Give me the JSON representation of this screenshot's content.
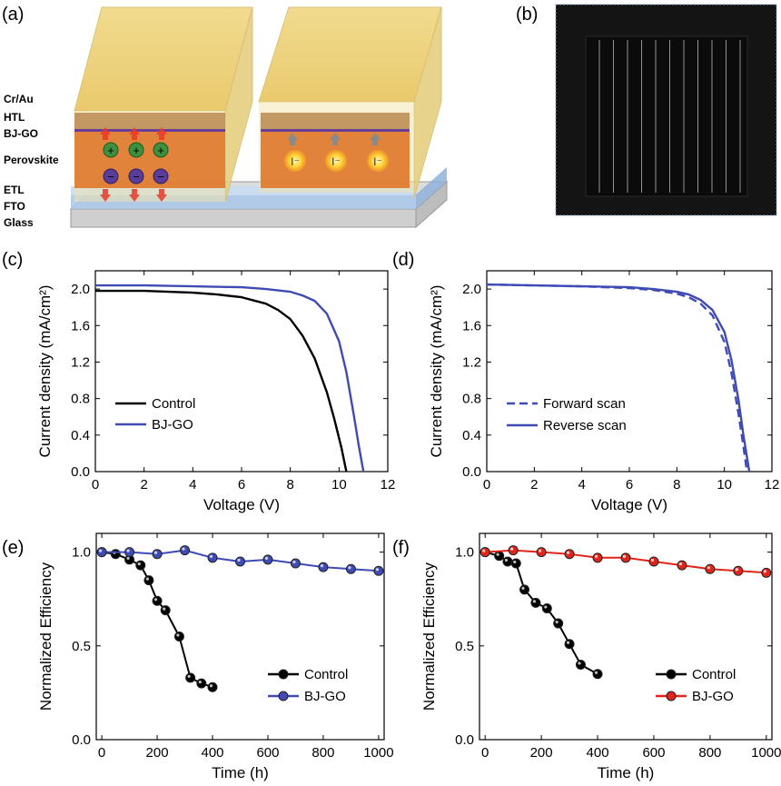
{
  "panel_labels": [
    "(a)",
    "(b)",
    "(c)",
    "(d)",
    "(e)",
    "(f)"
  ],
  "schematic": {
    "layers": [
      {
        "label": "Cr/Au",
        "color": "#d9b44a"
      },
      {
        "label": "HTL",
        "color": "#b8860b"
      },
      {
        "label": "BJ-GO",
        "color": "#6a3d9a"
      },
      {
        "label": "Perovskite",
        "color": "#d2691e"
      },
      {
        "label": "ETL",
        "color": "#8fb3e0"
      },
      {
        "label": "FTO",
        "color": "#2c3e8c"
      },
      {
        "label": "Glass",
        "color": "#222222"
      }
    ],
    "cell1_symbols": [
      "+",
      "+",
      "+",
      "−",
      "−",
      "−"
    ],
    "cell2_ion": "I⁻"
  },
  "chart_data": [
    {
      "id": "c",
      "type": "line",
      "xlabel": "Voltage (V)",
      "ylabel": "Current density (mA/cm²)",
      "xlim": [
        0,
        12
      ],
      "ylim": [
        0,
        2.2
      ],
      "xticks": [
        0,
        2,
        4,
        6,
        8,
        10,
        12
      ],
      "yticks": [
        "0.0",
        "0.4",
        "0.8",
        "1.2",
        "1.6",
        "2.0"
      ],
      "legend_position": "lower-left",
      "series": [
        {
          "name": "Control",
          "color": "#000000",
          "dash": "none",
          "x": [
            0,
            2,
            4,
            5,
            6,
            7,
            7.5,
            8,
            8.5,
            9,
            9.5,
            9.8,
            10.1,
            10.3
          ],
          "y": [
            1.98,
            1.98,
            1.96,
            1.94,
            1.91,
            1.84,
            1.77,
            1.67,
            1.49,
            1.24,
            0.87,
            0.58,
            0.26,
            0.0
          ]
        },
        {
          "name": "BJ-GO",
          "color": "#3f4bb5",
          "dash": "none",
          "x": [
            0,
            2,
            4,
            6,
            7,
            8,
            8.5,
            9,
            9.5,
            10,
            10.3,
            10.6,
            10.8,
            11.0
          ],
          "y": [
            2.04,
            2.04,
            2.03,
            2.02,
            2.0,
            1.97,
            1.93,
            1.87,
            1.73,
            1.43,
            1.09,
            0.63,
            0.3,
            0.0
          ]
        }
      ]
    },
    {
      "id": "d",
      "type": "line",
      "xlabel": "Voltage (V)",
      "ylabel": "Current density (mA/cm²)",
      "xlim": [
        0,
        12
      ],
      "ylim": [
        0,
        2.2
      ],
      "xticks": [
        0,
        2,
        4,
        6,
        8,
        10,
        12
      ],
      "yticks": [
        "0.0",
        "0.4",
        "0.8",
        "1.2",
        "1.6",
        "2.0"
      ],
      "legend_position": "lower-left",
      "series": [
        {
          "name": "Forward scan",
          "color": "#3f4bb5",
          "dash": "9,5",
          "x": [
            0,
            2,
            4,
            6,
            7,
            8,
            8.5,
            9,
            9.5,
            10,
            10.3,
            10.6,
            10.8,
            10.95
          ],
          "y": [
            2.05,
            2.04,
            2.03,
            2.01,
            1.99,
            1.95,
            1.91,
            1.84,
            1.71,
            1.42,
            1.08,
            0.62,
            0.28,
            0.0
          ]
        },
        {
          "name": "Reverse scan",
          "color": "#3f4bb5",
          "dash": "none",
          "x": [
            0,
            2,
            4,
            6,
            7,
            8,
            8.5,
            9,
            9.5,
            10,
            10.3,
            10.6,
            10.8,
            11.05
          ],
          "y": [
            2.05,
            2.04,
            2.03,
            2.02,
            2.0,
            1.97,
            1.94,
            1.88,
            1.77,
            1.53,
            1.22,
            0.77,
            0.4,
            0.0
          ]
        }
      ]
    },
    {
      "id": "e",
      "type": "line",
      "xlabel": "Time (h)",
      "ylabel": "Normalized Efficiency",
      "xlim": [
        -20,
        1020
      ],
      "ylim": [
        0,
        1.1
      ],
      "xticks": [
        0,
        200,
        400,
        600,
        800,
        1000
      ],
      "yticks": [
        "0.0",
        "0.5",
        "1.0"
      ],
      "legend_position": "lower-right",
      "series": [
        {
          "name": "Control",
          "color": "#000000",
          "markers": true,
          "x": [
            0,
            50,
            100,
            140,
            170,
            200,
            230,
            280,
            320,
            360,
            400
          ],
          "y": [
            1.0,
            0.99,
            0.96,
            0.93,
            0.85,
            0.74,
            0.69,
            0.55,
            0.33,
            0.3,
            0.28
          ]
        },
        {
          "name": "BJ-GO",
          "color": "#3f4bb5",
          "markers": true,
          "x": [
            0,
            100,
            200,
            300,
            400,
            500,
            600,
            700,
            800,
            900,
            1000
          ],
          "y": [
            1.0,
            1.0,
            0.99,
            1.01,
            0.97,
            0.95,
            0.96,
            0.94,
            0.92,
            0.91,
            0.9
          ]
        }
      ]
    },
    {
      "id": "f",
      "type": "line",
      "xlabel": "Time (h)",
      "ylabel": "Normalized Efficiency",
      "xlim": [
        -20,
        1020
      ],
      "ylim": [
        0,
        1.1
      ],
      "xticks": [
        0,
        200,
        400,
        600,
        800,
        1000
      ],
      "yticks": [
        "0.0",
        "0.5",
        "1.0"
      ],
      "legend_position": "lower-right",
      "series": [
        {
          "name": "Control",
          "color": "#000000",
          "markers": true,
          "x": [
            0,
            50,
            80,
            110,
            140,
            180,
            220,
            260,
            300,
            340,
            400
          ],
          "y": [
            1.0,
            0.98,
            0.95,
            0.94,
            0.8,
            0.73,
            0.7,
            0.62,
            0.51,
            0.4,
            0.35
          ]
        },
        {
          "name": "BJ-GO",
          "color": "#e0261b",
          "markers": true,
          "x": [
            0,
            100,
            200,
            300,
            400,
            500,
            600,
            700,
            800,
            900,
            1000
          ],
          "y": [
            1.0,
            1.01,
            1.0,
            0.99,
            0.97,
            0.97,
            0.95,
            0.93,
            0.91,
            0.9,
            0.89
          ]
        }
      ]
    }
  ]
}
